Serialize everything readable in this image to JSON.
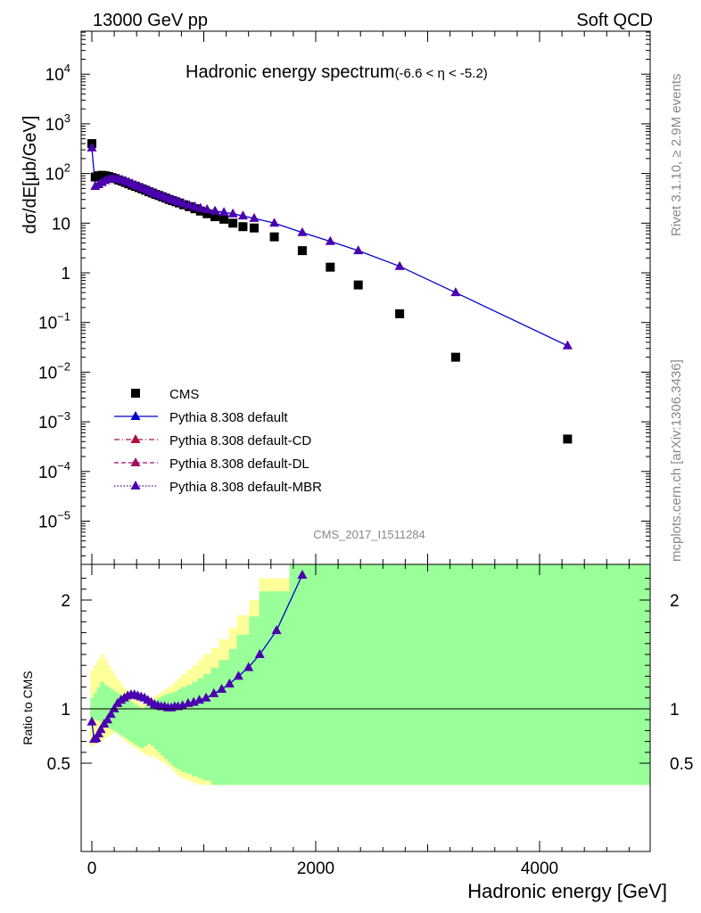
{
  "header": {
    "left": "13000 GeV pp",
    "right": "Soft QCD"
  },
  "side_texts": {
    "rivet": "Rivet 3.1.10, ≥ 2.9M events",
    "mcplots": "mcplots.cern.ch [arXiv:1306.3436]"
  },
  "chart_data": [
    {
      "type": "scatter",
      "title": "Hadronic energy spectrum",
      "title_suffix": "(-6.6 < η < -5.2)",
      "analysis_id": "CMS_2017_I1511284",
      "ylabel": "dσ/dE[μb/GeV]",
      "yscale": "log",
      "ylim": [
        2e-06,
        80000.0
      ],
      "xlim": [
        -60,
        5000
      ],
      "y_ticks": [
        {
          "v": 1e-05,
          "label_base": "10",
          "label_exp": "−5"
        },
        {
          "v": 0.0001,
          "label_base": "10",
          "label_exp": "−4"
        },
        {
          "v": 0.001,
          "label_base": "10",
          "label_exp": "−3"
        },
        {
          "v": 0.01,
          "label_base": "10",
          "label_exp": "−2"
        },
        {
          "v": 0.1,
          "label_base": "10",
          "label_exp": "−1"
        },
        {
          "v": 1,
          "label_base": "1",
          "label_exp": ""
        },
        {
          "v": 10,
          "label_base": "10",
          "label_exp": ""
        },
        {
          "v": 100,
          "label_base": "10",
          "label_exp": "2"
        },
        {
          "v": 1000,
          "label_base": "10",
          "label_exp": "3"
        },
        {
          "v": 10000,
          "label_base": "10",
          "label_exp": "4"
        }
      ],
      "legend": [
        {
          "name": "CMS",
          "marker": "square",
          "color": "#000000",
          "line": "none"
        },
        {
          "name": "Pythia 8.308 default",
          "marker": "triangle",
          "color": "#0000cc",
          "line": "solid"
        },
        {
          "name": "Pythia 8.308 default-CD",
          "marker": "triangle",
          "color": "#b0103a",
          "line": "dashdot"
        },
        {
          "name": "Pythia 8.308 default-DL",
          "marker": "triangle",
          "color": "#a01060",
          "line": "dashed"
        },
        {
          "name": "Pythia 8.308 default-MBR",
          "marker": "triangle",
          "color": "#4b00b0",
          "line": "dotted"
        }
      ],
      "series": [
        {
          "name": "CMS",
          "x": [
            0,
            30,
            60,
            90,
            120,
            150,
            180,
            210,
            240,
            270,
            300,
            330,
            360,
            390,
            420,
            450,
            480,
            510,
            540,
            570,
            600,
            630,
            660,
            690,
            720,
            750,
            780,
            820,
            870,
            920,
            970,
            1030,
            1100,
            1180,
            1260,
            1350,
            1450,
            1630,
            1880,
            2130,
            2380,
            2750,
            3250,
            4250
          ],
          "y": [
            400,
            85,
            90,
            92,
            90,
            87,
            83,
            79,
            74,
            70,
            66,
            62,
            58,
            55,
            52,
            49,
            46,
            43,
            40.5,
            38,
            36,
            34,
            32,
            30,
            28.5,
            27,
            25.5,
            23.5,
            21.5,
            19.5,
            17.5,
            15.5,
            13.5,
            12,
            10,
            8.5,
            8,
            5.3,
            2.8,
            1.3,
            0.57,
            0.15,
            0.02,
            0.00045
          ]
        },
        {
          "name": "Pythia 8.308 default",
          "x": [
            0,
            30,
            60,
            90,
            120,
            150,
            180,
            210,
            240,
            270,
            300,
            330,
            360,
            390,
            420,
            450,
            480,
            510,
            540,
            570,
            600,
            630,
            660,
            690,
            720,
            750,
            780,
            820,
            870,
            920,
            970,
            1030,
            1100,
            1180,
            1260,
            1350,
            1450,
            1630,
            1880,
            2130,
            2380,
            2750,
            3250,
            4250
          ],
          "y": [
            330,
            55,
            60,
            66,
            72,
            77,
            80,
            79,
            77,
            74,
            70,
            66,
            62,
            58,
            55,
            51,
            48,
            45,
            42,
            39,
            37,
            35,
            33,
            31,
            29.5,
            28,
            26.5,
            24.8,
            23,
            21.5,
            20,
            18.8,
            17.6,
            16.5,
            15.5,
            14,
            12.5,
            10,
            6.5,
            4.3,
            2.8,
            1.35,
            0.4,
            0.034
          ]
        }
      ]
    },
    {
      "type": "line",
      "ylabel": "Ratio to CMS",
      "xlabel": "Hadronic energy [GeV]",
      "xlim": [
        -60,
        5000
      ],
      "ylim": [
        0.35,
        2.35
      ],
      "x_ticks": [
        0,
        2000,
        4000
      ],
      "y_ticks": [
        0.5,
        1,
        2
      ],
      "band_colors": {
        "stat": "#99ff99",
        "syst": "#ffff99"
      },
      "bands": {
        "edges": [
          -15,
          15,
          45,
          75,
          105,
          135,
          165,
          195,
          225,
          255,
          285,
          315,
          345,
          375,
          405,
          435,
          465,
          495,
          525,
          555,
          585,
          615,
          645,
          675,
          705,
          735,
          765,
          795,
          845,
          895,
          945,
          995,
          1065,
          1135,
          1225,
          1295,
          1405,
          1495,
          1765,
          1995,
          2265,
          2495,
          3005,
          3495,
          5000
        ],
        "green_lo": [
          0.91,
          0.9,
          0.89,
          0.87,
          0.85,
          0.83,
          0.81,
          0.79,
          0.77,
          0.75,
          0.73,
          0.71,
          0.69,
          0.67,
          0.65,
          0.64,
          0.66,
          0.68,
          0.66,
          0.63,
          0.6,
          0.57,
          0.54,
          0.51,
          0.48,
          0.46,
          0.44,
          0.42,
          0.4,
          0.38,
          0.36,
          0.34,
          0.3,
          0.3,
          0.3,
          0.3,
          0.3,
          0.3,
          0.3,
          0.3,
          0.3,
          0.3,
          0.3,
          0.3
        ],
        "green_hi": [
          1.1,
          1.15,
          1.2,
          1.25,
          1.22,
          1.2,
          1.18,
          1.16,
          1.14,
          1.12,
          1.1,
          1.08,
          1.06,
          1.04,
          1.02,
          1.0,
          1.02,
          1.04,
          1.06,
          1.08,
          1.1,
          1.12,
          1.13,
          1.14,
          1.15,
          1.16,
          1.18,
          1.2,
          1.22,
          1.25,
          1.28,
          1.32,
          1.38,
          1.45,
          1.55,
          1.68,
          1.85,
          2.08,
          2.35,
          2.35,
          2.35,
          2.35,
          2.35,
          2.35
        ],
        "yellow_lo": [
          0.66,
          0.67,
          0.69,
          0.71,
          0.73,
          0.75,
          0.77,
          0.78,
          0.76,
          0.73,
          0.7,
          0.68,
          0.66,
          0.64,
          0.62,
          0.6,
          0.58,
          0.56,
          0.57,
          0.55,
          0.53,
          0.51,
          0.49,
          0.47,
          0.44,
          0.41,
          0.38,
          0.36,
          0.34,
          0.32,
          0.3,
          0.3,
          0.3,
          0.3,
          0.3,
          0.3,
          0.3,
          0.3,
          0.3,
          0.3,
          0.3,
          0.3,
          0.3,
          0.3
        ],
        "yellow_hi": [
          1.35,
          1.4,
          1.45,
          1.5,
          1.46,
          1.4,
          1.35,
          1.3,
          1.26,
          1.22,
          1.18,
          1.15,
          1.12,
          1.09,
          1.06,
          1.04,
          1.06,
          1.08,
          1.1,
          1.12,
          1.14,
          1.16,
          1.18,
          1.2,
          1.22,
          1.25,
          1.28,
          1.32,
          1.36,
          1.4,
          1.45,
          1.5,
          1.56,
          1.64,
          1.74,
          1.86,
          2.0,
          2.2,
          2.35,
          2.35,
          2.35,
          2.35,
          2.35,
          2.35
        ]
      },
      "series": [
        {
          "name": "Pythia 8.308 default",
          "x": [
            0,
            20,
            40,
            60,
            80,
            110,
            140,
            170,
            200,
            230,
            260,
            290,
            320,
            350,
            380,
            410,
            440,
            470,
            500,
            530,
            560,
            590,
            620,
            650,
            680,
            710,
            740,
            770,
            810,
            860,
            910,
            960,
            1020,
            1090,
            1160,
            1230,
            1310,
            1400,
            1500,
            1650,
            1880
          ],
          "y": [
            0.88,
            0.72,
            0.73,
            0.77,
            0.81,
            0.86,
            0.9,
            0.95,
            1.0,
            1.05,
            1.08,
            1.1,
            1.12,
            1.13,
            1.13,
            1.12,
            1.11,
            1.1,
            1.08,
            1.06,
            1.04,
            1.03,
            1.02,
            1.02,
            1.01,
            1.01,
            1.02,
            1.02,
            1.03,
            1.05,
            1.06,
            1.08,
            1.1,
            1.14,
            1.18,
            1.23,
            1.3,
            1.38,
            1.5,
            1.72,
            2.23
          ]
        }
      ]
    }
  ]
}
